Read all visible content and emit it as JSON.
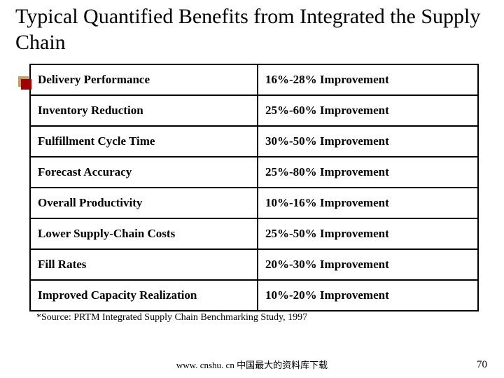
{
  "title": "Typical Quantified Benefits from Integrated the Supply Chain",
  "table": {
    "rows": [
      {
        "metric": "Delivery Performance",
        "value": "16%-28% Improvement"
      },
      {
        "metric": "Inventory Reduction",
        "value": "25%-60% Improvement"
      },
      {
        "metric": "Fulfillment Cycle Time",
        "value": "30%-50% Improvement"
      },
      {
        "metric": "Forecast Accuracy",
        "value": "25%-80% Improvement"
      },
      {
        "metric": "Overall Productivity",
        "value": "10%-16% Improvement"
      },
      {
        "metric": "Lower Supply-Chain Costs",
        "value": "25%-50% Improvement"
      },
      {
        "metric": "Fill Rates",
        "value": "20%-30% Improvement"
      },
      {
        "metric": "Improved Capacity Realization",
        "value": "10%-20% Improvement"
      }
    ],
    "border_color": "#000000",
    "cell_fontsize_pt": 13,
    "cell_fontweight": "bold"
  },
  "source_note": "*Source: PRTM Integrated Supply Chain Benchmarking Study, 1997",
  "footer_text": "www. cnshu. cn 中国最大的资料库下载",
  "page_number": "70",
  "colors": {
    "bullet_back": "#c0a060",
    "bullet_front": "#a00000",
    "text": "#000000",
    "background": "#ffffff"
  },
  "typography": {
    "title_fontsize_pt": 22,
    "source_fontsize_pt": 10,
    "footer_fontsize_pt": 10,
    "font_family": "Times New Roman"
  }
}
